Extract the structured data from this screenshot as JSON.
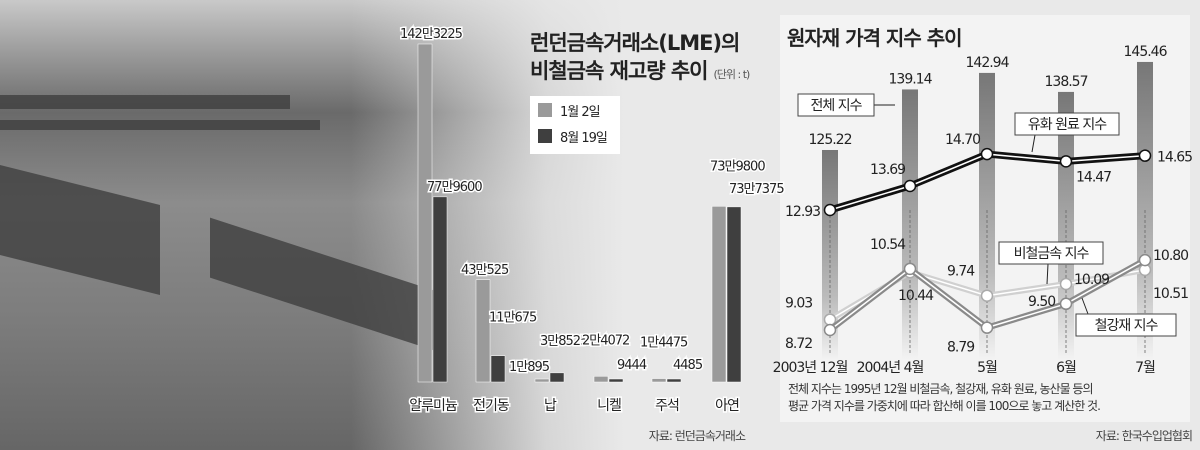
{
  "chart_data": [
    {
      "type": "bar",
      "title": "런던금속거래소(LME)의 비철금속 재고량 추이",
      "unit": "(단위 : t)",
      "categories": [
        "알루미늄",
        "전기동",
        "납",
        "니켈",
        "주석",
        "아연"
      ],
      "series": [
        {
          "name": "1월 2일",
          "color": "#9a9a9a",
          "values": [
            1423225,
            430525,
            10895,
            24072,
            14475,
            739800
          ],
          "labels": [
            "142만3225",
            "43만525",
            "1만895",
            "2만4072",
            "1만4475",
            "73만9800"
          ]
        },
        {
          "name": "8월 19일",
          "color": "#3f3f3f",
          "values": [
            779600,
            110675,
            38525,
            9444,
            4485,
            737375
          ],
          "labels": [
            "77만9600",
            "11만675",
            "3만8525",
            "9444",
            "4485",
            "73만7375"
          ]
        }
      ],
      "legend": "top-right",
      "source": "자료: 런던금속거래소"
    },
    {
      "type": "bar+line",
      "title": "원자재 가격 지수 추이",
      "categories": [
        "2003년 12월",
        "2004년 4월",
        "5월",
        "6월",
        "7월"
      ],
      "bars": {
        "name": "전체 지수",
        "values": [
          125.22,
          139.14,
          142.94,
          138.57,
          145.46
        ],
        "labels": [
          "125.22",
          "139.14",
          "142.94",
          "138.57",
          "145.46"
        ]
      },
      "lines": [
        {
          "name": "유화 원료 지수",
          "values": [
            12.93,
            13.69,
            14.7,
            14.47,
            14.65
          ],
          "labels": [
            "12.93",
            "13.69",
            "14.70",
            "14.47",
            "14.65"
          ],
          "color": "#111111"
        },
        {
          "name": "비철금속 지수",
          "values": [
            9.03,
            10.44,
            9.74,
            10.09,
            10.51
          ],
          "labels": [
            "9.03",
            "10.44",
            "9.74",
            "10.09",
            "10.51"
          ],
          "color": "#d0d0d0"
        },
        {
          "name": "철강재 지수",
          "values": [
            8.72,
            10.54,
            8.79,
            9.5,
            10.8
          ],
          "labels": [
            "8.72",
            "10.54",
            "8.79",
            "9.50",
            "10.80"
          ],
          "color": "#8a8a8a"
        }
      ],
      "note": [
        "전체 지수는 1995년 12월 비철금속, 철강재, 유화 원료, 농산물 등의",
        "평균 가격 지수를 가중치에 따라 합산해 이를 100으로 놓고 계산한 것."
      ],
      "source": "자료: 한국수입업협회"
    }
  ]
}
